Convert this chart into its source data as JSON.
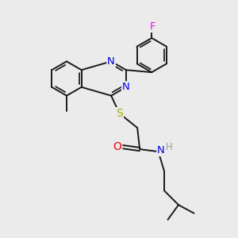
{
  "background_color": "#ebebeb",
  "bond_color": "#1a1a1a",
  "atom_colors": {
    "N": "#0000ee",
    "O": "#ee0000",
    "S": "#aaaa00",
    "F": "#ee00ee",
    "C": "#1a1a1a",
    "H": "#999999"
  },
  "figsize": [
    3.0,
    3.0
  ],
  "dpi": 100,
  "lw": 1.4
}
